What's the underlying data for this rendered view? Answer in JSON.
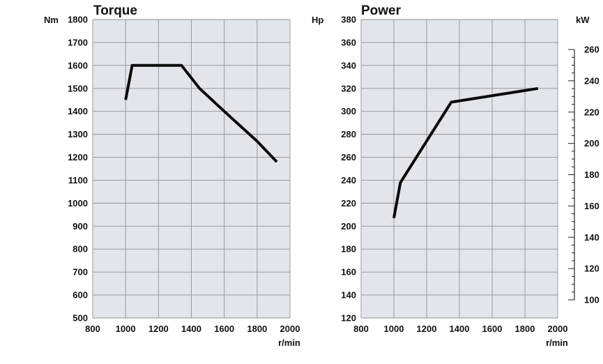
{
  "chart_data": [
    {
      "type": "line",
      "title": "Torque",
      "ylabel": "Nm",
      "xlabel": "r/min",
      "xlim": [
        800,
        2000
      ],
      "ylim": [
        500,
        1800
      ],
      "xticks": [
        "800",
        "1000",
        "1200",
        "1400",
        "1600",
        "1800",
        "2000"
      ],
      "yticks": [
        "500",
        "600",
        "700",
        "800",
        "900",
        "1000",
        "1100",
        "1200",
        "1300",
        "1400",
        "1500",
        "1600",
        "1700",
        "1800"
      ],
      "grid": true,
      "series": [
        {
          "x": [
            1000,
            1040,
            1340,
            1450,
            1600,
            1800,
            1920
          ],
          "y": [
            1450,
            1600,
            1600,
            1500,
            1400,
            1270,
            1180
          ]
        }
      ]
    },
    {
      "type": "line",
      "title": "Power",
      "ylabel": "Hp",
      "ylabel_right": "kW",
      "xlabel": "r/min",
      "xlim": [
        800,
        2000
      ],
      "ylim": [
        120,
        380
      ],
      "ylim_right": [
        100,
        260
      ],
      "xticks": [
        "800",
        "1000",
        "1200",
        "1400",
        "1600",
        "1800",
        "2000"
      ],
      "yticks": [
        "120",
        "140",
        "160",
        "180",
        "200",
        "220",
        "240",
        "260",
        "280",
        "300",
        "320",
        "340",
        "360",
        "380"
      ],
      "yticks_right": [
        "100",
        "120",
        "140",
        "160",
        "180",
        "200",
        "220",
        "240",
        "260"
      ],
      "grid": true,
      "series": [
        {
          "x": [
            1000,
            1040,
            1350,
            1880
          ],
          "y": [
            207,
            238,
            308,
            320
          ]
        }
      ]
    }
  ]
}
